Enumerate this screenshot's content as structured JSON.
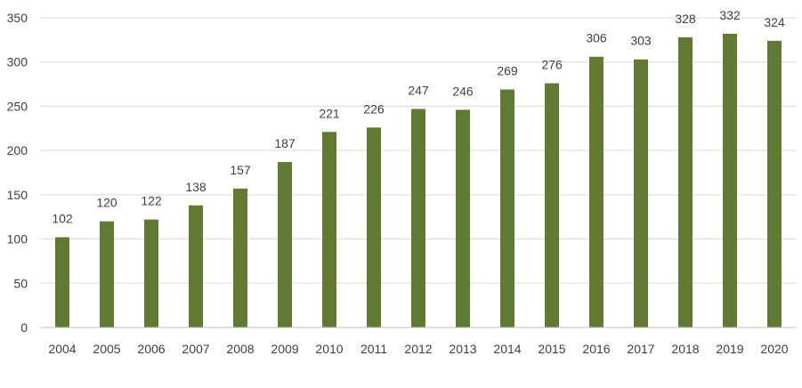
{
  "chart_data": {
    "type": "bar",
    "categories": [
      "2004",
      "2005",
      "2006",
      "2007",
      "2008",
      "2009",
      "2010",
      "2011",
      "2012",
      "2013",
      "2014",
      "2015",
      "2016",
      "2017",
      "2018",
      "2019",
      "2020"
    ],
    "values": [
      102,
      120,
      122,
      138,
      157,
      187,
      221,
      226,
      247,
      246,
      269,
      276,
      306,
      303,
      328,
      332,
      324
    ],
    "title": "",
    "xlabel": "",
    "ylabel": "",
    "ylim": [
      0,
      350
    ],
    "yticks": [
      0,
      50,
      100,
      150,
      200,
      250,
      300,
      350
    ],
    "grid": true,
    "legend": "none",
    "data_labels": true,
    "colors": {
      "bar": "#617A31",
      "grid": "#D9D9D9",
      "axis": "#BFBFBF",
      "text": "#404040"
    }
  }
}
